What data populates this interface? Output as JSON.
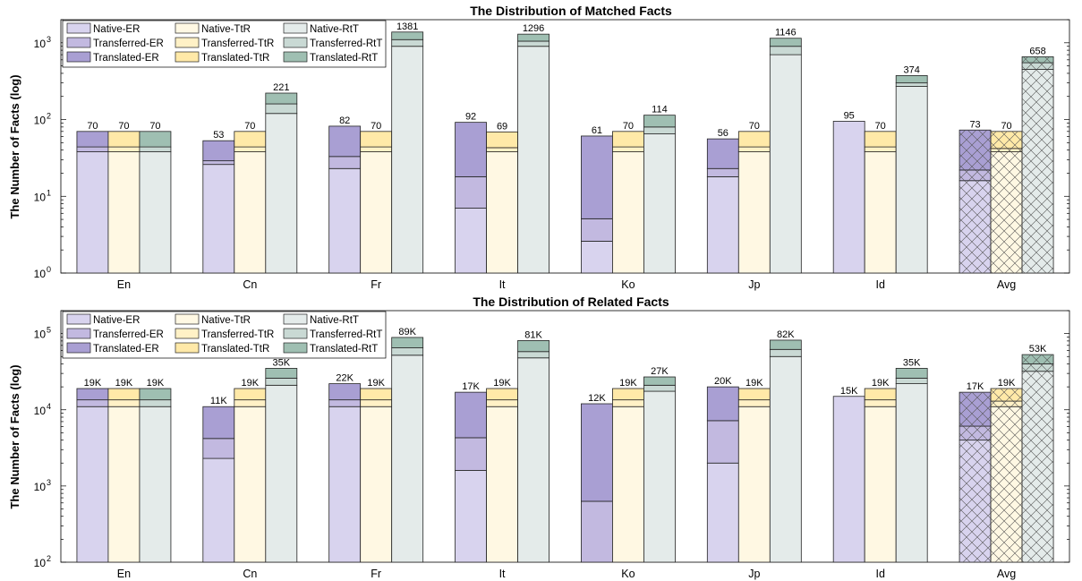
{
  "colors": {
    "native_er": "#d8d3ee",
    "transferred_er": "#c2b9e0",
    "translated_er": "#a99fd3",
    "native_ttr": "#fff8e3",
    "transferred_ttr": "#fff1c6",
    "translated_ttr": "#ffe9a8",
    "native_rtt": "#e4ebea",
    "transferred_rtt": "#c9d9d4",
    "translated_rtt": "#9fbfb2",
    "edge": "#222222"
  },
  "legend": [
    {
      "label": "Native-ER",
      "color_key": "native_er"
    },
    {
      "label": "Transferred-ER",
      "color_key": "transferred_er"
    },
    {
      "label": "Translated-ER",
      "color_key": "translated_er"
    },
    {
      "label": "Native-TtR",
      "color_key": "native_ttr"
    },
    {
      "label": "Transferred-TtR",
      "color_key": "transferred_ttr"
    },
    {
      "label": "Translated-TtR",
      "color_key": "translated_ttr"
    },
    {
      "label": "Native-RtT",
      "color_key": "native_rtt"
    },
    {
      "label": "Transferred-RtT",
      "color_key": "transferred_rtt"
    },
    {
      "label": "Translated-RtT",
      "color_key": "translated_rtt"
    }
  ],
  "chart_data": [
    {
      "type": "bar",
      "title": "The Distribution of Matched Facts",
      "ylabel": "The Number of Facts (log)",
      "yscale": "log",
      "ylim": [
        1,
        2000
      ],
      "yticks": [
        1,
        10,
        100,
        1000
      ],
      "ytick_labels": [
        "10",
        "10",
        "10",
        "10"
      ],
      "ytick_exponents": [
        "0",
        "1",
        "2",
        "3"
      ],
      "legend_position": "top-left",
      "categories": [
        "En",
        "Cn",
        "Fr",
        "It",
        "Ko",
        "Jp",
        "Id",
        "Avg"
      ],
      "hatched_categories": [
        "Avg"
      ],
      "groups": [
        {
          "category": "En",
          "bars": [
            {
              "kind": "er",
              "native": 38,
              "transferred": 44,
              "translated": 70,
              "label": "70"
            },
            {
              "kind": "ttr",
              "native": 38,
              "transferred": 44,
              "translated": 70,
              "label": "70"
            },
            {
              "kind": "rtt",
              "native": 38,
              "transferred": 44,
              "translated": 70,
              "label": "70"
            }
          ]
        },
        {
          "category": "Cn",
          "bars": [
            {
              "kind": "er",
              "native": 26,
              "transferred": 29,
              "translated": 53,
              "label": "53"
            },
            {
              "kind": "ttr",
              "native": 38,
              "transferred": 44,
              "translated": 70,
              "label": "70"
            },
            {
              "kind": "rtt",
              "native": 120,
              "transferred": 160,
              "translated": 221,
              "label": "221"
            }
          ]
        },
        {
          "category": "Fr",
          "bars": [
            {
              "kind": "er",
              "native": 23,
              "transferred": 33,
              "translated": 82,
              "label": "82"
            },
            {
              "kind": "ttr",
              "native": 38,
              "transferred": 44,
              "translated": 70,
              "label": "70"
            },
            {
              "kind": "rtt",
              "native": 900,
              "transferred": 1100,
              "translated": 1381,
              "label": "1381"
            }
          ]
        },
        {
          "category": "It",
          "bars": [
            {
              "kind": "er",
              "native": 7,
              "transferred": 18,
              "translated": 92,
              "label": "92"
            },
            {
              "kind": "ttr",
              "native": 38,
              "transferred": 43,
              "translated": 69,
              "label": "69"
            },
            {
              "kind": "rtt",
              "native": 900,
              "transferred": 1050,
              "translated": 1296,
              "label": "1296"
            }
          ]
        },
        {
          "category": "Ko",
          "bars": [
            {
              "kind": "er",
              "native": 2.6,
              "transferred": 5.1,
              "translated": 61,
              "label": "61"
            },
            {
              "kind": "ttr",
              "native": 38,
              "transferred": 44,
              "translated": 70,
              "label": "70"
            },
            {
              "kind": "rtt",
              "native": 65,
              "transferred": 80,
              "translated": 114,
              "label": "114"
            }
          ]
        },
        {
          "category": "Jp",
          "bars": [
            {
              "kind": "er",
              "native": 18,
              "transferred": 23,
              "translated": 56,
              "label": "56"
            },
            {
              "kind": "ttr",
              "native": 38,
              "transferred": 44,
              "translated": 70,
              "label": "70"
            },
            {
              "kind": "rtt",
              "native": 700,
              "transferred": 900,
              "translated": 1146,
              "label": "1146"
            }
          ]
        },
        {
          "category": "Id",
          "bars": [
            {
              "kind": "er",
              "native": 95,
              "transferred": 95,
              "translated": 95,
              "label": "95"
            },
            {
              "kind": "ttr",
              "native": 38,
              "transferred": 44,
              "translated": 70,
              "label": "70"
            },
            {
              "kind": "rtt",
              "native": 270,
              "transferred": 300,
              "translated": 374,
              "label": "374"
            }
          ]
        },
        {
          "category": "Avg",
          "bars": [
            {
              "kind": "er",
              "native": 16,
              "transferred": 22,
              "translated": 73,
              "label": "73"
            },
            {
              "kind": "ttr",
              "native": 38,
              "transferred": 42,
              "translated": 70,
              "label": "70"
            },
            {
              "kind": "rtt",
              "native": 450,
              "transferred": 550,
              "translated": 658,
              "label": "658"
            }
          ]
        }
      ]
    },
    {
      "type": "bar",
      "title": "The Distribution of Related Facts",
      "ylabel": "The Number of Facts (log)",
      "yscale": "log",
      "ylim": [
        100,
        200000
      ],
      "yticks": [
        100,
        1000,
        10000,
        100000
      ],
      "ytick_labels": [
        "10",
        "10",
        "10",
        "10"
      ],
      "ytick_exponents": [
        "2",
        "3",
        "4",
        "5"
      ],
      "legend_position": "top-left",
      "categories": [
        "En",
        "Cn",
        "Fr",
        "It",
        "Ko",
        "Jp",
        "Id",
        "Avg"
      ],
      "hatched_categories": [
        "Avg"
      ],
      "groups": [
        {
          "category": "En",
          "bars": [
            {
              "kind": "er",
              "native": 11000,
              "transferred": 13500,
              "translated": 19000,
              "label": "19K"
            },
            {
              "kind": "ttr",
              "native": 11000,
              "transferred": 13500,
              "translated": 19000,
              "label": "19K"
            },
            {
              "kind": "rtt",
              "native": 11000,
              "transferred": 13500,
              "translated": 19000,
              "label": "19K"
            }
          ]
        },
        {
          "category": "Cn",
          "bars": [
            {
              "kind": "er",
              "native": 2300,
              "transferred": 4200,
              "translated": 11000,
              "label": "11K"
            },
            {
              "kind": "ttr",
              "native": 11000,
              "transferred": 13500,
              "translated": 19000,
              "label": "19K"
            },
            {
              "kind": "rtt",
              "native": 21000,
              "transferred": 26000,
              "translated": 35000,
              "label": "35K"
            }
          ]
        },
        {
          "category": "Fr",
          "bars": [
            {
              "kind": "er",
              "native": 11000,
              "transferred": 13500,
              "translated": 22000,
              "label": "22K"
            },
            {
              "kind": "ttr",
              "native": 11000,
              "transferred": 13500,
              "translated": 19000,
              "label": "19K"
            },
            {
              "kind": "rtt",
              "native": 52000,
              "transferred": 65000,
              "translated": 89000,
              "label": "89K"
            }
          ]
        },
        {
          "category": "It",
          "bars": [
            {
              "kind": "er",
              "native": 1600,
              "transferred": 4300,
              "translated": 17000,
              "label": "17K"
            },
            {
              "kind": "ttr",
              "native": 11000,
              "transferred": 13500,
              "translated": 19000,
              "label": "19K"
            },
            {
              "kind": "rtt",
              "native": 48000,
              "transferred": 58000,
              "translated": 81000,
              "label": "81K"
            }
          ]
        },
        {
          "category": "Ko",
          "bars": [
            {
              "kind": "er",
              "native": 100,
              "transferred": 630,
              "translated": 12000,
              "label": "12K"
            },
            {
              "kind": "ttr",
              "native": 11000,
              "transferred": 13500,
              "translated": 19000,
              "label": "19K"
            },
            {
              "kind": "rtt",
              "native": 17500,
              "transferred": 21000,
              "translated": 27000,
              "label": "27K"
            }
          ]
        },
        {
          "category": "Jp",
          "bars": [
            {
              "kind": "er",
              "native": 2000,
              "transferred": 7200,
              "translated": 20000,
              "label": "20K"
            },
            {
              "kind": "ttr",
              "native": 11000,
              "transferred": 13500,
              "translated": 19000,
              "label": "19K"
            },
            {
              "kind": "rtt",
              "native": 50000,
              "transferred": 62000,
              "translated": 82000,
              "label": "82K"
            }
          ]
        },
        {
          "category": "Id",
          "bars": [
            {
              "kind": "er",
              "native": 15000,
              "transferred": 15000,
              "translated": 15000,
              "label": "15K"
            },
            {
              "kind": "ttr",
              "native": 11000,
              "transferred": 13500,
              "translated": 19000,
              "label": "19K"
            },
            {
              "kind": "rtt",
              "native": 22000,
              "transferred": 26000,
              "translated": 35000,
              "label": "35K"
            }
          ]
        },
        {
          "category": "Avg",
          "bars": [
            {
              "kind": "er",
              "native": 4000,
              "transferred": 6100,
              "translated": 17000,
              "label": "17K"
            },
            {
              "kind": "ttr",
              "native": 11000,
              "transferred": 13000,
              "translated": 19000,
              "label": "19K"
            },
            {
              "kind": "rtt",
              "native": 32000,
              "transferred": 40000,
              "translated": 53000,
              "label": "53K"
            }
          ]
        }
      ]
    }
  ]
}
